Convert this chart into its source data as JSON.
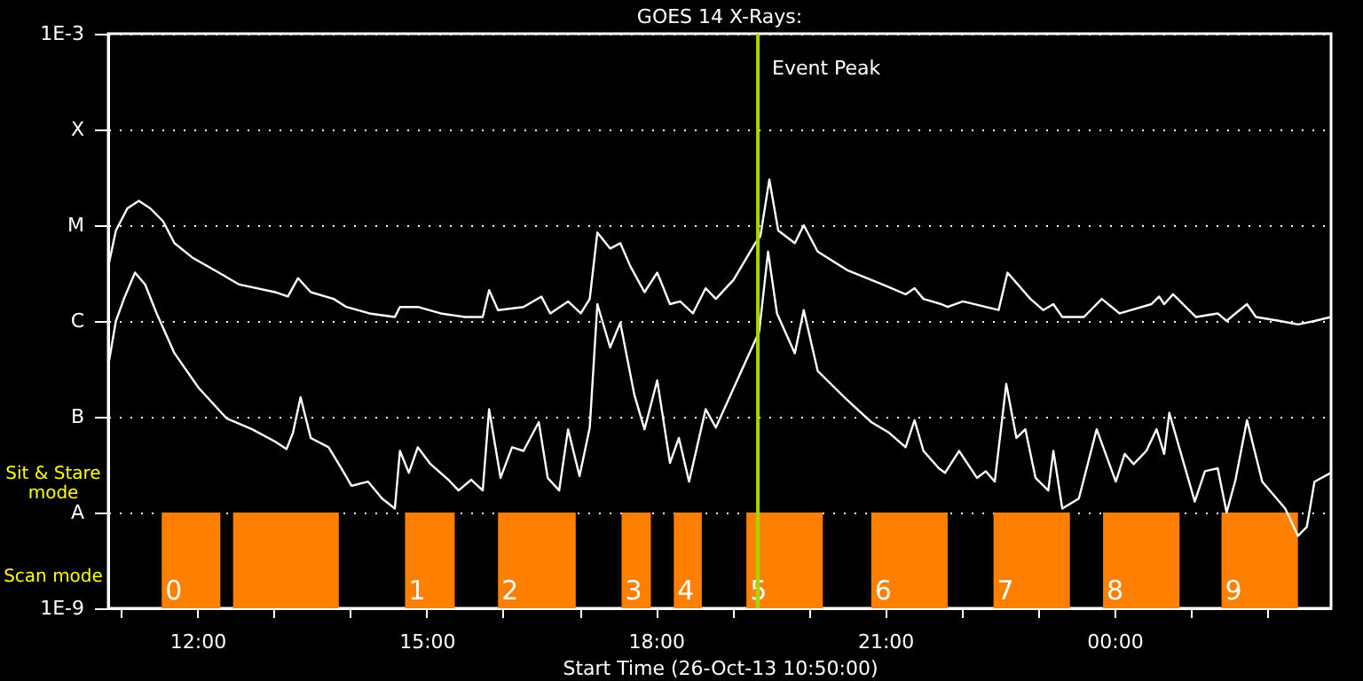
{
  "chart_data": {
    "type": "line",
    "title": "GOES 14 X-Rays:",
    "xlabel": "Start Time (26-Oct-13 10:50:00)",
    "log": "y",
    "grid": "y",
    "xlim": [
      "--10-26T10:50",
      "--10-27T02:50"
    ],
    "xticks": [
      {
        "value": "--10-26T11:00",
        "label": null
      },
      {
        "value": "--10-26T12:00",
        "label": "12:00"
      },
      {
        "value": "--10-26T13:00",
        "label": null
      },
      {
        "value": "--10-26T14:00",
        "label": null
      },
      {
        "value": "--10-26T15:00",
        "label": "15:00"
      },
      {
        "value": "--10-26T16:00",
        "label": null
      },
      {
        "value": "--10-26T17:00",
        "label": null
      },
      {
        "value": "--10-26T18:00",
        "label": "18:00"
      },
      {
        "value": "--10-26T19:00",
        "label": null
      },
      {
        "value": "--10-26T20:00",
        "label": null
      },
      {
        "value": "--10-26T21:00",
        "label": "21:00"
      },
      {
        "value": "--10-26T22:00",
        "label": null
      },
      {
        "value": "--10-26T23:00",
        "label": null
      },
      {
        "value": "--10-27T00:00",
        "label": "00:00"
      },
      {
        "value": "--10-27T01:00",
        "label": null
      },
      {
        "value": "--10-27T02:00",
        "label": null
      }
    ],
    "ylim": [
      1e-09,
      0.001
    ],
    "yticks": [
      {
        "value": 1e-09,
        "label": "1E-9"
      },
      {
        "value": 1e-08,
        "label": "A"
      },
      {
        "value": 1e-07,
        "label": "B"
      },
      {
        "value": 1e-06,
        "label": "C"
      },
      {
        "value": 1e-05,
        "label": "M"
      },
      {
        "value": 0.0001,
        "label": "X"
      },
      {
        "value": 0.001,
        "label": "1E-3"
      }
    ],
    "series": [
      {
        "color": "#ffffff",
        "x": [
          "--10-26T10:50",
          "--10-26T10:56",
          "--10-26T11:05",
          "--10-26T11:14",
          "--10-26T11:23",
          "--10-26T11:33",
          "--10-26T11:42",
          "--10-26T11:56",
          "--10-26T12:15",
          "--10-26T12:33",
          "--10-26T13:01",
          "--10-26T13:11",
          "--10-26T13:19",
          "--10-26T13:29",
          "--10-26T13:47",
          "--10-26T13:57",
          "--10-26T14:15",
          "--10-26T14:35",
          "--10-26T14:39",
          "--10-26T14:53",
          "--10-26T15:11",
          "--10-26T15:30",
          "--10-26T15:44",
          "--10-26T15:49",
          "--10-26T15:56",
          "--10-26T16:16",
          "--10-26T16:30",
          "--10-26T16:37",
          "--10-26T16:51",
          "--10-26T17:01",
          "--10-26T17:08",
          "--10-26T17:14",
          "--10-26T17:24",
          "--10-26T17:32",
          "--10-26T17:40",
          "--10-26T17:51",
          "--10-26T18:01",
          "--10-26T18:11",
          "--10-26T18:19",
          "--10-26T18:29",
          "--10-26T18:39",
          "--10-26T18:47",
          "--10-26T19:01",
          "--10-26T19:18",
          "--10-26T19:22",
          "--10-26T19:29",
          "--10-26T19:36",
          "--10-26T19:49",
          "--10-26T19:56",
          "--10-26T20:07",
          "--10-26T20:30",
          "--10-26T20:58",
          "--10-26T21:16",
          "--10-26T21:23",
          "--10-26T21:30",
          "--10-26T21:44",
          "--10-26T21:49",
          "--10-26T22:01",
          "--10-26T22:29",
          "--10-26T22:36",
          "--10-26T22:54",
          "--10-26T23:04",
          "--10-26T23:12",
          "--10-26T23:19",
          "--10-26T23:36",
          "--10-26T23:50",
          "--10-27T00:04",
          "--10-27T00:29",
          "--10-27T00:35",
          "--10-27T00:39",
          "--10-27T00:46",
          "--10-27T01:04",
          "--10-27T01:21",
          "--10-27T01:28",
          "--10-27T01:35",
          "--10-27T01:44",
          "--10-27T01:51",
          "--10-27T02:10",
          "--10-27T02:24",
          "--10-27T02:37",
          "--10-27T02:50"
        ],
        "values": [
          3.7e-06,
          8.8e-06,
          1.5e-05,
          1.8e-05,
          1.5e-05,
          1.1e-05,
          6.5e-06,
          4.6e-06,
          3.3e-06,
          2.4e-06,
          2e-06,
          1.8e-06,
          2.8e-06,
          2e-06,
          1.7e-06,
          1.4e-06,
          1.2e-06,
          1.1e-06,
          1.4e-06,
          1.4e-06,
          1.2e-06,
          1.1e-06,
          1.1e-06,
          2.1e-06,
          1.3e-06,
          1.4e-06,
          1.8e-06,
          1.2e-06,
          1.6e-06,
          1.2e-06,
          1.7e-06,
          8.4e-06,
          5.7e-06,
          6.5e-06,
          3.7e-06,
          2e-06,
          3.2e-06,
          1.5e-06,
          1.6e-06,
          1.2e-06,
          2.2e-06,
          1.7e-06,
          2.7e-06,
          6.5e-06,
          7.7e-06,
          3e-05,
          8.8e-06,
          6.5e-06,
          1e-05,
          5.3e-06,
          3.4e-06,
          2.4e-06,
          1.9e-06,
          2.2e-06,
          1.7e-06,
          1.5e-06,
          1.4e-06,
          1.6e-06,
          1.3e-06,
          3.2e-06,
          1.7e-06,
          1.3e-06,
          1.5e-06,
          1.1e-06,
          1.1e-06,
          1.7e-06,
          1.2e-06,
          1.5e-06,
          1.8e-06,
          1.5e-06,
          1.9e-06,
          1.1e-06,
          1.2e-06,
          1e-06,
          1.2e-06,
          1.5e-06,
          1.1e-06,
          1e-06,
          9.2e-07,
          1e-06,
          1.1e-06
        ]
      },
      {
        "color": "#ffffff",
        "x": [
          "--10-26T10:50",
          "--10-26T10:56",
          "--10-26T11:03",
          "--10-26T11:11",
          "--10-26T11:19",
          "--10-26T11:28",
          "--10-26T11:42",
          "--10-26T12:01",
          "--10-26T12:23",
          "--10-26T12:43",
          "--10-26T13:01",
          "--10-26T13:10",
          "--10-26T13:15",
          "--10-26T13:21",
          "--10-26T13:29",
          "--10-26T13:43",
          "--10-26T13:53",
          "--10-26T14:01",
          "--10-26T14:14",
          "--10-26T14:25",
          "--10-26T14:35",
          "--10-26T14:39",
          "--10-26T14:46",
          "--10-26T14:53",
          "--10-26T15:03",
          "--10-26T15:17",
          "--10-26T15:25",
          "--10-26T15:35",
          "--10-26T15:44",
          "--10-26T15:49",
          "--10-26T15:58",
          "--10-26T16:07",
          "--10-26T16:16",
          "--10-26T16:28",
          "--10-26T16:35",
          "--10-26T16:44",
          "--10-26T16:51",
          "--10-26T17:00",
          "--10-26T17:08",
          "--10-26T17:14",
          "--10-26T17:24",
          "--10-26T17:32",
          "--10-26T17:43",
          "--10-26T17:51",
          "--10-26T18:01",
          "--10-26T18:11",
          "--10-26T18:18",
          "--10-26T18:26",
          "--10-26T18:39",
          "--10-26T18:47",
          "--10-26T19:07",
          "--10-26T19:21",
          "--10-26T19:28",
          "--10-26T19:35",
          "--10-26T19:49",
          "--10-26T19:56",
          "--10-26T20:07",
          "--10-26T20:30",
          "--10-26T20:49",
          "--10-26T21:03",
          "--10-26T21:16",
          "--10-26T21:23",
          "--10-26T21:30",
          "--10-26T21:42",
          "--10-26T21:47",
          "--10-26T21:58",
          "--10-26T22:12",
          "--10-26T22:19",
          "--10-26T22:26",
          "--10-26T22:35",
          "--10-26T22:43",
          "--10-26T22:50",
          "--10-26T22:58",
          "--10-26T23:08",
          "--10-26T23:12",
          "--10-26T23:19",
          "--10-26T23:32",
          "--10-26T23:46",
          "--10-27T00:01",
          "--10-27T00:08",
          "--10-27T00:15",
          "--10-27T00:25",
          "--10-27T00:33",
          "--10-27T00:39",
          "--10-27T00:43",
          "--10-27T01:03",
          "--10-27T01:11",
          "--10-27T01:21",
          "--10-27T01:28",
          "--10-27T01:35",
          "--10-27T01:44",
          "--10-27T01:56",
          "--10-27T02:14",
          "--10-27T02:24",
          "--10-27T02:31",
          "--10-27T02:37",
          "--10-27T02:50"
        ],
        "values": [
          3.4e-07,
          1e-06,
          1.8e-06,
          3.2e-06,
          2.4e-06,
          1.2e-06,
          4.6e-07,
          2e-07,
          9.6e-08,
          7.4e-08,
          5.5e-08,
          4.6e-08,
          6.8e-08,
          1.6e-07,
          6e-08,
          4.8e-08,
          2.9e-08,
          1.9e-08,
          2.1e-08,
          1.4e-08,
          1.1e-08,
          4.4e-08,
          2.6e-08,
          4.8e-08,
          3.2e-08,
          2.2e-08,
          1.7e-08,
          2.2e-08,
          1.7e-08,
          1.2e-07,
          2.3e-08,
          4.8e-08,
          4.4e-08,
          8.8e-08,
          2.3e-08,
          1.7e-08,
          7.4e-08,
          2.4e-08,
          7.7e-08,
          1.5e-06,
          5.3e-07,
          9.6e-07,
          1.7e-07,
          7.4e-08,
          2.4e-07,
          3.3e-08,
          6e-08,
          2.1e-08,
          1.2e-07,
          7.7e-08,
          3e-07,
          7.7e-07,
          5.3e-06,
          1.2e-06,
          4.6e-07,
          1.3e-06,
          3e-07,
          1.5e-07,
          8.8e-08,
          6.8e-08,
          4.8e-08,
          9.2e-08,
          4.4e-08,
          2.9e-08,
          2.6e-08,
          4.4e-08,
          2.3e-08,
          2.7e-08,
          2.1e-08,
          2.2e-07,
          6e-08,
          7.4e-08,
          2.3e-08,
          1.7e-08,
          4.4e-08,
          1.1e-08,
          1.4e-08,
          7.4e-08,
          2.1e-08,
          4.1e-08,
          3.2e-08,
          4.4e-08,
          7.4e-08,
          4.1e-08,
          1.1e-07,
          1.3e-08,
          2.7e-08,
          2.9e-08,
          1e-08,
          2.2e-08,
          9.2e-08,
          2.1e-08,
          1.1e-08,
          5.7e-09,
          7.1e-09,
          2.1e-08,
          2.6e-08
        ]
      }
    ],
    "ref_lines": [
      {
        "axis": "x",
        "value": "--10-26T19:20",
        "label": "Event Peak",
        "color": "#a8d400"
      }
    ],
    "bands": [
      {
        "axis": "x",
        "from": "--10-26T11:32",
        "to": "--10-26T12:18",
        "label": "0",
        "color": "#ff8000"
      },
      {
        "axis": "x",
        "from": "--10-26T12:28",
        "to": "--10-26T13:51",
        "label": null,
        "color": "#ff8000"
      },
      {
        "axis": "x",
        "from": "--10-26T14:43",
        "to": "--10-26T15:22",
        "label": "1",
        "color": "#ff8000"
      },
      {
        "axis": "x",
        "from": "--10-26T15:56",
        "to": "--10-26T16:57",
        "label": "2",
        "color": "#ff8000"
      },
      {
        "axis": "x",
        "from": "--10-26T17:33",
        "to": "--10-26T17:56",
        "label": "3",
        "color": "#ff8000"
      },
      {
        "axis": "x",
        "from": "--10-26T18:14",
        "to": "--10-26T18:36",
        "label": "4",
        "color": "#ff8000"
      },
      {
        "axis": "x",
        "from": "--10-26T19:11",
        "to": "--10-26T20:11",
        "label": "5",
        "color": "#ff8000"
      },
      {
        "axis": "x",
        "from": "--10-26T20:49",
        "to": "--10-26T21:49",
        "label": "6",
        "color": "#ff8000"
      },
      {
        "axis": "x",
        "from": "--10-26T22:25",
        "to": "--10-26T23:25",
        "label": "7",
        "color": "#ff8000"
      },
      {
        "axis": "x",
        "from": "--10-26T23:51",
        "to": "--10-27T00:51",
        "label": "8",
        "color": "#ff8000"
      },
      {
        "axis": "x",
        "from": "--10-27T01:24",
        "to": "--10-27T02:24",
        "label": "9",
        "color": "#ff8000"
      }
    ],
    "annotations": [
      "Sit & Stare mode",
      "Scan mode"
    ]
  }
}
